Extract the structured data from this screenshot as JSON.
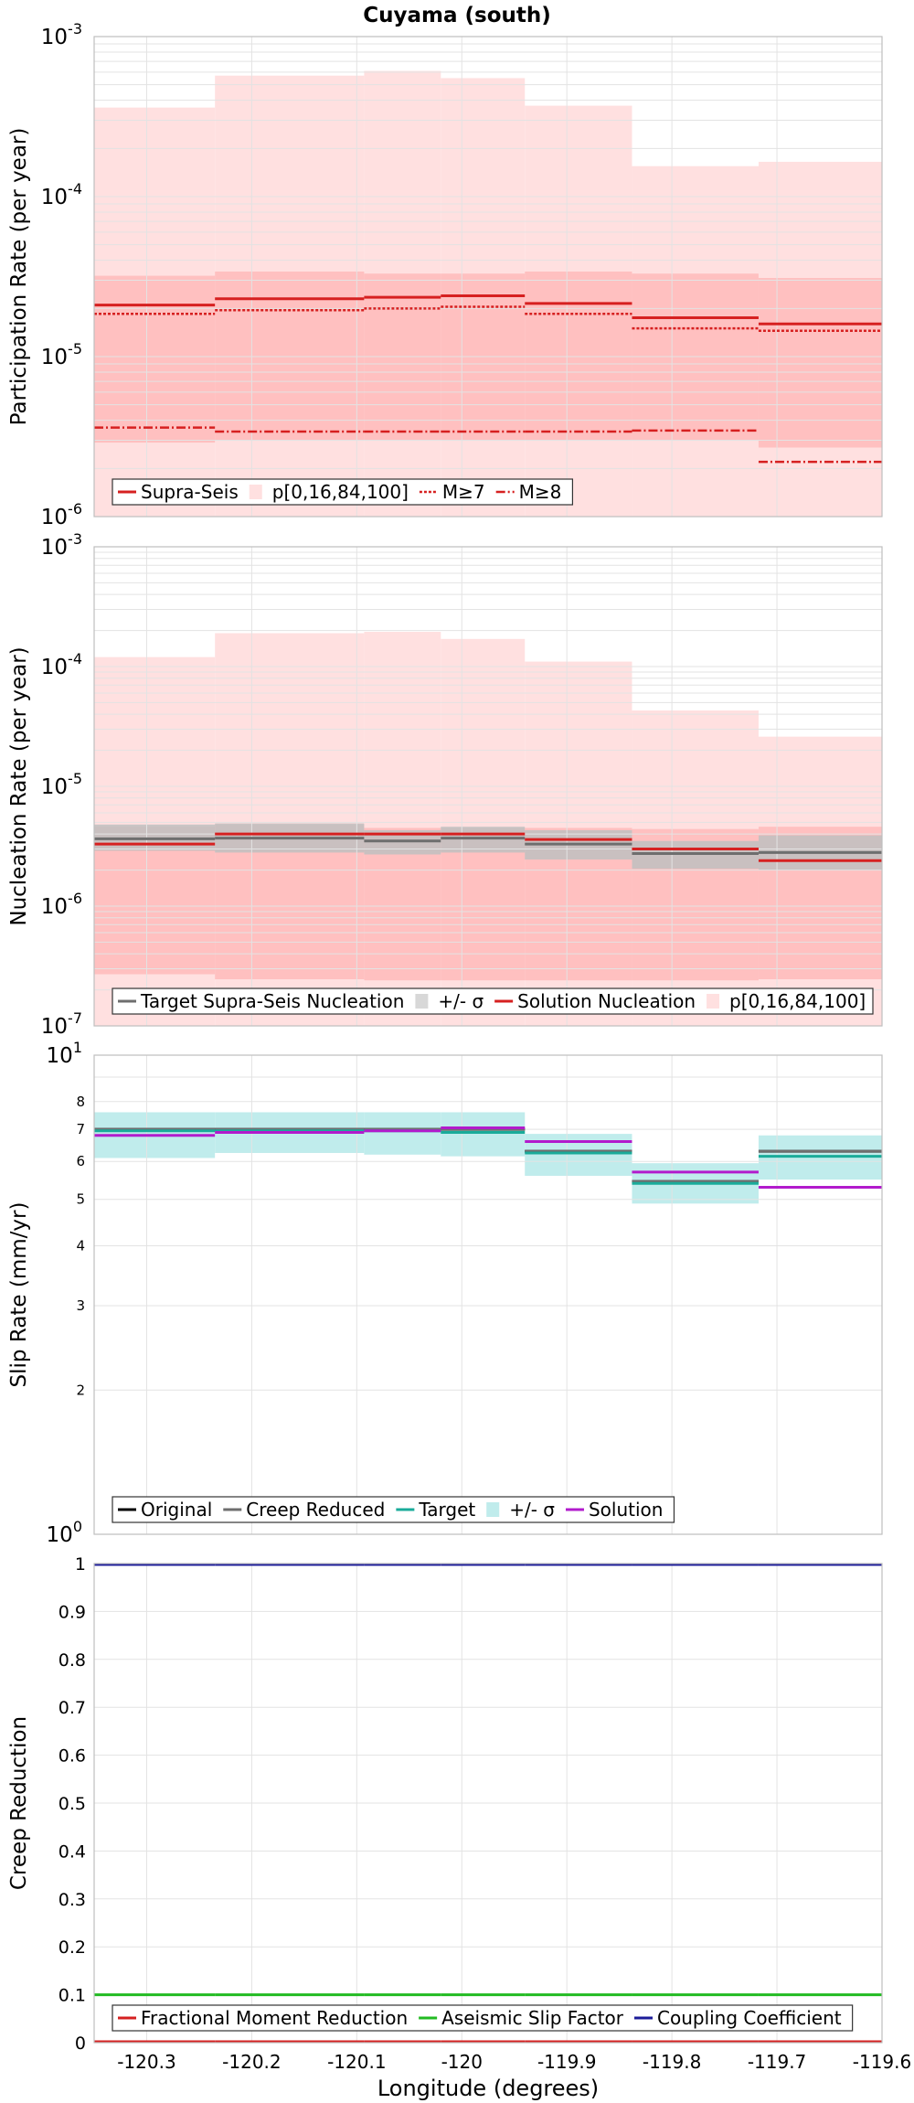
{
  "title": "Cuyama (south)",
  "xlabel": "Longitude (degrees)",
  "x_ticks": [
    -120.3,
    -120.2,
    -120.1,
    -120,
    -119.9,
    -119.8,
    -119.7,
    -119.6
  ],
  "x_tick_labels": [
    "-120.3",
    "-120.2",
    "-120.1",
    "-120",
    "-119.9",
    "-119.8",
    "-119.7",
    "-119.6"
  ],
  "xlim": [
    -120.35,
    -119.6
  ],
  "bins": [
    [
      -120.35,
      -120.235
    ],
    [
      -120.235,
      -120.093
    ],
    [
      -120.093,
      -120.02
    ],
    [
      -120.02,
      -119.94
    ],
    [
      -119.94,
      -119.838
    ],
    [
      -119.838,
      -119.7175
    ],
    [
      -119.7175,
      -119.6
    ]
  ],
  "colors": {
    "red": "#d62020",
    "fill_light": "#ffe0e0",
    "fill_dark": "#ffc0c0",
    "grey": "#6e6e6e",
    "grey_fill": "#c0c0c0",
    "teal": "#1aab9a",
    "teal_fill": "#c0ecec",
    "magenta": "#b21bcc",
    "black": "#000000",
    "green": "#22bb22",
    "navy": "#1c1c99"
  },
  "chart_data": [
    {
      "type": "line",
      "panel": "participation",
      "title": "Cuyama (south)",
      "ylabel": "Participation Rate (per year)",
      "yscale": "log",
      "ylim": [
        1e-06,
        0.001
      ],
      "y_tick_labels": [
        {
          "base": "10",
          "exp": "-6",
          "value": 1e-06
        },
        {
          "base": "10",
          "exp": "-5",
          "value": 1e-05
        },
        {
          "base": "10",
          "exp": "-4",
          "value": 0.0001
        },
        {
          "base": "10",
          "exp": "-3",
          "value": 0.001
        }
      ],
      "legend": [
        "Supra-Seis",
        "p[0,16,84,100]",
        "M≥7",
        "M≥8"
      ],
      "legend_position": "bottom-left",
      "bands": [
        {
          "name": "p[0,16,84,100]",
          "kind": "outer",
          "lower": [
            1e-06,
            1e-06,
            1e-06,
            1e-06,
            1e-06,
            1e-06,
            1e-06
          ],
          "upper": [
            0.00036,
            0.00057,
            0.00061,
            0.00055,
            0.00037,
            0.000155,
            0.000165
          ]
        },
        {
          "name": "p[0,16,84,100]",
          "kind": "inner",
          "lower": [
            2.9e-06,
            3e-06,
            3e-06,
            3e-06,
            3e-06,
            3e-06,
            2.7e-06
          ],
          "upper": [
            3.2e-05,
            3.4e-05,
            3.3e-05,
            3.3e-05,
            3.4e-05,
            3.3e-05,
            3.1e-05
          ]
        }
      ],
      "series": [
        {
          "name": "Supra-Seis",
          "style": "solid",
          "values": [
            2.1e-05,
            2.3e-05,
            2.35e-05,
            2.4e-05,
            2.15e-05,
            1.75e-05,
            1.6e-05
          ]
        },
        {
          "name": "M≥7",
          "style": "dotted",
          "values": [
            1.85e-05,
            1.95e-05,
            2e-05,
            2.05e-05,
            1.85e-05,
            1.5e-05,
            1.45e-05
          ]
        },
        {
          "name": "M≥8",
          "style": "dashdot",
          "values": [
            3.6e-06,
            3.4e-06,
            3.4e-06,
            3.4e-06,
            3.4e-06,
            3.45e-06,
            2.2e-06
          ]
        }
      ]
    },
    {
      "type": "line",
      "panel": "nucleation",
      "ylabel": "Nucleation Rate (per year)",
      "yscale": "log",
      "ylim": [
        1e-07,
        0.001
      ],
      "y_tick_labels": [
        {
          "base": "10",
          "exp": "-7",
          "value": 1e-07
        },
        {
          "base": "10",
          "exp": "-6",
          "value": 1e-06
        },
        {
          "base": "10",
          "exp": "-5",
          "value": 1e-05
        },
        {
          "base": "10",
          "exp": "-4",
          "value": 0.0001
        },
        {
          "base": "10",
          "exp": "-3",
          "value": 0.001
        }
      ],
      "legend": [
        "Target Supra-Seis Nucleation",
        "+/- σ",
        "Solution Nucleation",
        "p[0,16,84,100]"
      ],
      "legend_position": "bottom-left",
      "bands": [
        {
          "name": "p[0,16,84,100]",
          "kind": "outer",
          "lower": [
            1e-07,
            1e-07,
            1e-07,
            1e-07,
            1e-07,
            1e-07,
            1e-07
          ],
          "upper": [
            0.00012,
            0.00019,
            0.000195,
            0.00017,
            0.00011,
            4.3e-05,
            2.6e-05
          ]
        },
        {
          "name": "p[0,16,84,100]",
          "kind": "inner",
          "lower": [
            2.7e-07,
            2.45e-07,
            2.4e-07,
            2.4e-07,
            2.4e-07,
            2.4e-07,
            2.45e-07
          ],
          "upper": [
            4.6e-06,
            4.8e-06,
            4.5e-06,
            4.5e-06,
            4.5e-06,
            4.4e-06,
            4.6e-06
          ]
        },
        {
          "name": "+/- σ",
          "kind": "sigma",
          "lower": [
            2.9e-06,
            2.8e-06,
            2.7e-06,
            2.8e-06,
            2.45e-06,
            2.05e-06,
            2e-06
          ],
          "upper": [
            4.8e-06,
            4.9e-06,
            4.3e-06,
            4.6e-06,
            4.3e-06,
            3.5e-06,
            3.9e-06
          ]
        }
      ],
      "series": [
        {
          "name": "Target Supra-Seis Nucleation",
          "style": "solid",
          "values": [
            3.65e-06,
            3.7e-06,
            3.5e-06,
            3.7e-06,
            3.3e-06,
            2.75e-06,
            2.8e-06
          ]
        },
        {
          "name": "Solution Nucleation",
          "style": "solid",
          "values": [
            3.3e-06,
            4e-06,
            4e-06,
            4e-06,
            3.6e-06,
            3e-06,
            2.4e-06
          ]
        }
      ]
    },
    {
      "type": "line",
      "panel": "sliprate",
      "ylabel": "Slip Rate (mm/yr)",
      "yscale": "log",
      "ylim": [
        1,
        10
      ],
      "y_tick_labels": [
        {
          "base": "10",
          "exp": "0",
          "value": 1
        },
        {
          "base": "10",
          "exp": "1",
          "value": 10
        }
      ],
      "y_minor_labels": [
        "2",
        "3",
        "4",
        "5",
        "6",
        "7",
        "8"
      ],
      "y_minor_values": [
        2,
        3,
        4,
        5,
        6,
        7,
        8
      ],
      "legend": [
        "Original",
        "Creep Reduced",
        "Target",
        "+/- σ",
        "Solution"
      ],
      "legend_position": "bottom-left",
      "bands": [
        {
          "name": "+/- σ",
          "kind": "sigma",
          "lower": [
            6.1,
            6.25,
            6.2,
            6.15,
            5.6,
            4.9,
            5.5
          ],
          "upper": [
            7.6,
            7.6,
            7.6,
            7.6,
            6.85,
            5.95,
            6.8
          ]
        }
      ],
      "series": [
        {
          "name": "Original",
          "style": "solid",
          "values": [
            7.0,
            7.0,
            7.0,
            7.0,
            6.3,
            5.45,
            6.3
          ]
        },
        {
          "name": "Creep Reduced",
          "style": "solid",
          "values": [
            7.0,
            7.0,
            7.0,
            7.0,
            6.3,
            5.45,
            6.3
          ]
        },
        {
          "name": "Target",
          "style": "solid",
          "values": [
            6.95,
            6.95,
            6.95,
            6.9,
            6.25,
            5.4,
            6.15
          ]
        },
        {
          "name": "Solution",
          "style": "solid",
          "values": [
            6.8,
            6.9,
            6.95,
            7.05,
            6.6,
            5.7,
            5.3
          ]
        }
      ]
    },
    {
      "type": "line",
      "panel": "creep",
      "ylabel": "Creep Reduction",
      "yscale": "linear",
      "ylim": [
        0,
        1
      ],
      "y_ticks": [
        0,
        0.1,
        0.2,
        0.3,
        0.4,
        0.5,
        0.6,
        0.7,
        0.8,
        0.9,
        1
      ],
      "y_tick_text": [
        "0",
        "0.1",
        "0.2",
        "0.3",
        "0.4",
        "0.5",
        "0.6",
        "0.7",
        "0.8",
        "0.9",
        "1"
      ],
      "legend": [
        "Fractional Moment Reduction",
        "Aseismic Slip Factor",
        "Coupling Coefficient"
      ],
      "legend_position": "bottom-left",
      "bands": [],
      "series": [
        {
          "name": "Fractional Moment Reduction",
          "style": "solid",
          "values": [
            0,
            0,
            0,
            0,
            0,
            0,
            0
          ]
        },
        {
          "name": "Aseismic Slip Factor",
          "style": "solid",
          "values": [
            0.1,
            0.1,
            0.1,
            0.1,
            0.1,
            0.1,
            0.1
          ]
        },
        {
          "name": "Coupling Coefficient",
          "style": "solid",
          "values": [
            1,
            1,
            1,
            1,
            1,
            1,
            1
          ]
        }
      ]
    }
  ]
}
